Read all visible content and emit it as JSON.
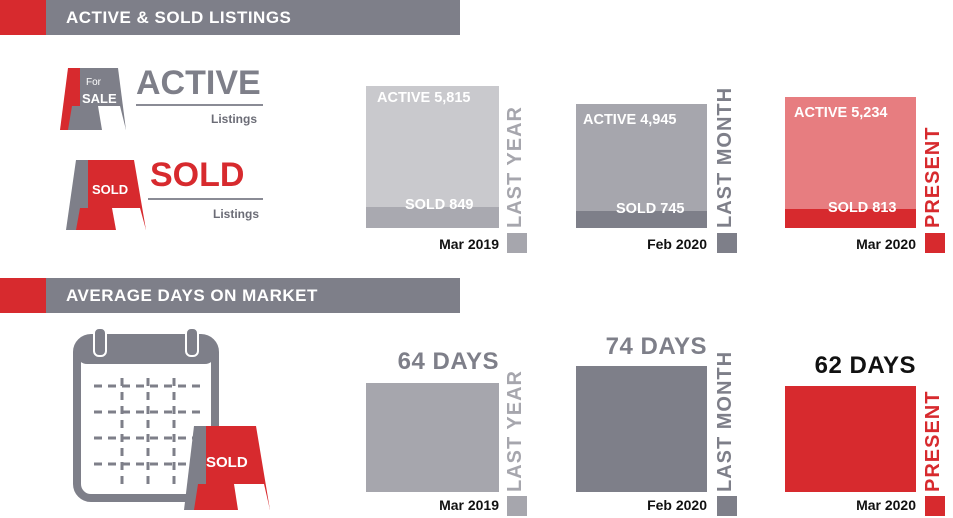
{
  "section1": {
    "title": "ACTIVE & SOLD LISTINGS"
  },
  "section2": {
    "title": "AVERAGE DAYS ON MARKET"
  },
  "legend": {
    "active": {
      "sign_text_top": "For",
      "sign_text_bottom": "SALE",
      "title": "ACTIVE",
      "subtitle": "Listings"
    },
    "sold": {
      "sign_text": "SOLD",
      "title": "SOLD",
      "subtitle": "Listings"
    }
  },
  "calendar_sign_text": "SOLD",
  "colors": {
    "last_year": "#c9c9cd",
    "last_year_sold": "#a9a9b0",
    "last_year_label": "#a6a6ad",
    "last_month": "#a6a6ad",
    "last_month_sold": "#7e7f89",
    "last_month_label": "#7e7f89",
    "present": "#e77d80",
    "present_sold": "#d72a2e",
    "present_label": "#d72a2e",
    "header_bar": "#7e7f89",
    "accent": "#d72a2e"
  },
  "chart_data": [
    {
      "type": "bar",
      "title": "ACTIVE & SOLD LISTINGS",
      "categories": [
        "Mar 2019",
        "Feb 2020",
        "Mar 2020"
      ],
      "period_labels": [
        "LAST YEAR",
        "LAST MONTH",
        "PRESENT"
      ],
      "series": [
        {
          "name": "ACTIVE",
          "values": [
            5815,
            4945,
            5234
          ],
          "labels": [
            "ACTIVE 5,815",
            "ACTIVE 4,945",
            "ACTIVE 5,234"
          ]
        },
        {
          "name": "SOLD",
          "values": [
            849,
            745,
            813
          ],
          "labels": [
            "SOLD 849",
            "SOLD 745",
            "SOLD 813"
          ]
        }
      ]
    },
    {
      "type": "bar",
      "title": "AVERAGE DAYS ON MARKET",
      "categories": [
        "Mar 2019",
        "Feb 2020",
        "Mar 2020"
      ],
      "period_labels": [
        "LAST YEAR",
        "LAST MONTH",
        "PRESENT"
      ],
      "values": [
        64,
        74,
        62
      ],
      "labels": [
        "64 DAYS",
        "74 DAYS",
        "62 DAYS"
      ]
    }
  ]
}
